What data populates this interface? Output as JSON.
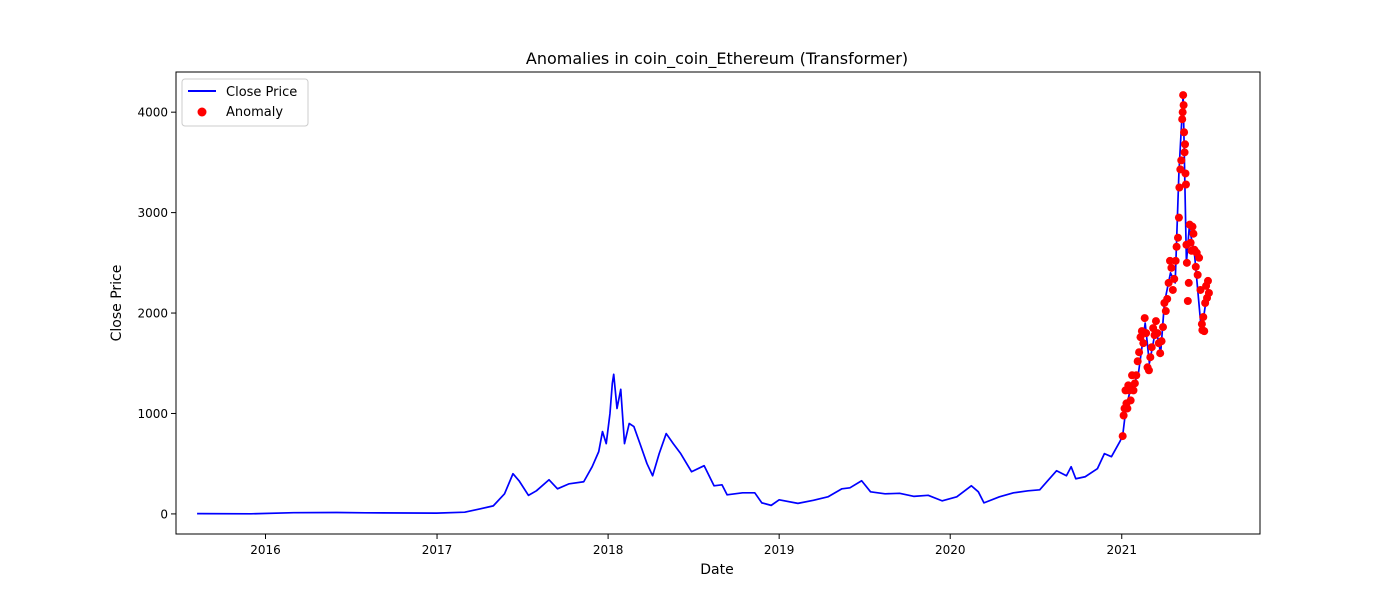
{
  "chart_data": {
    "type": "line",
    "title": "Anomalies in coin_coin_Ethereum (Transformer)",
    "xlabel": "Date",
    "ylabel": "Close Price",
    "x_range": [
      "2015-06-24",
      "2021-10-23"
    ],
    "ylim": [
      -200,
      4400
    ],
    "x_ticks": [
      {
        "date": "2016-01-01",
        "label": "2016"
      },
      {
        "date": "2017-01-01",
        "label": "2017"
      },
      {
        "date": "2018-01-01",
        "label": "2018"
      },
      {
        "date": "2019-01-01",
        "label": "2019"
      },
      {
        "date": "2020-01-01",
        "label": "2020"
      },
      {
        "date": "2021-01-01",
        "label": "2021"
      }
    ],
    "y_ticks": [
      {
        "value": 0,
        "label": "0"
      },
      {
        "value": 1000,
        "label": "1000"
      },
      {
        "value": 2000,
        "label": "2000"
      },
      {
        "value": 3000,
        "label": "3000"
      },
      {
        "value": 4000,
        "label": "4000"
      }
    ],
    "grid": false,
    "legend": {
      "position": "top-left",
      "entries": [
        {
          "label": "Close Price",
          "marker": "line",
          "color": "#0000ff"
        },
        {
          "label": "Anomaly",
          "marker": "dot",
          "color": "#ff0000"
        }
      ]
    },
    "series": [
      {
        "name": "Close Price",
        "kind": "line",
        "color": "#0000ff",
        "points": [
          [
            "2015-08-08",
            3
          ],
          [
            "2015-12-01",
            1
          ],
          [
            "2016-03-01",
            12
          ],
          [
            "2016-06-01",
            14
          ],
          [
            "2016-08-01",
            11
          ],
          [
            "2016-12-31",
            8
          ],
          [
            "2017-03-01",
            17
          ],
          [
            "2017-04-01",
            48
          ],
          [
            "2017-05-01",
            80
          ],
          [
            "2017-05-25",
            200
          ],
          [
            "2017-06-12",
            400
          ],
          [
            "2017-06-25",
            330
          ],
          [
            "2017-07-15",
            185
          ],
          [
            "2017-08-01",
            230
          ],
          [
            "2017-08-28",
            340
          ],
          [
            "2017-09-15",
            250
          ],
          [
            "2017-10-10",
            300
          ],
          [
            "2017-11-10",
            320
          ],
          [
            "2017-11-28",
            470
          ],
          [
            "2017-12-12",
            620
          ],
          [
            "2017-12-20",
            820
          ],
          [
            "2017-12-28",
            700
          ],
          [
            "2018-01-05",
            1000
          ],
          [
            "2018-01-10",
            1300
          ],
          [
            "2018-01-13",
            1390
          ],
          [
            "2018-01-20",
            1050
          ],
          [
            "2018-01-28",
            1240
          ],
          [
            "2018-02-05",
            700
          ],
          [
            "2018-02-15",
            900
          ],
          [
            "2018-02-25",
            870
          ],
          [
            "2018-03-10",
            700
          ],
          [
            "2018-03-25",
            500
          ],
          [
            "2018-04-06",
            380
          ],
          [
            "2018-04-20",
            600
          ],
          [
            "2018-05-05",
            800
          ],
          [
            "2018-05-20",
            700
          ],
          [
            "2018-06-05",
            600
          ],
          [
            "2018-06-28",
            420
          ],
          [
            "2018-07-25",
            480
          ],
          [
            "2018-08-15",
            280
          ],
          [
            "2018-09-01",
            290
          ],
          [
            "2018-09-12",
            190
          ],
          [
            "2018-10-15",
            210
          ],
          [
            "2018-11-10",
            210
          ],
          [
            "2018-11-25",
            110
          ],
          [
            "2018-12-15",
            85
          ],
          [
            "2019-01-01",
            140
          ],
          [
            "2019-02-10",
            105
          ],
          [
            "2019-03-15",
            135
          ],
          [
            "2019-04-15",
            170
          ],
          [
            "2019-05-15",
            250
          ],
          [
            "2019-06-01",
            260
          ],
          [
            "2019-06-26",
            330
          ],
          [
            "2019-07-15",
            220
          ],
          [
            "2019-08-15",
            200
          ],
          [
            "2019-09-15",
            205
          ],
          [
            "2019-10-15",
            175
          ],
          [
            "2019-11-15",
            185
          ],
          [
            "2019-12-15",
            130
          ],
          [
            "2020-01-15",
            170
          ],
          [
            "2020-02-15",
            280
          ],
          [
            "2020-03-01",
            220
          ],
          [
            "2020-03-13",
            110
          ],
          [
            "2020-04-15",
            170
          ],
          [
            "2020-05-15",
            210
          ],
          [
            "2020-06-15",
            230
          ],
          [
            "2020-07-10",
            240
          ],
          [
            "2020-07-25",
            320
          ],
          [
            "2020-08-15",
            430
          ],
          [
            "2020-09-05",
            380
          ],
          [
            "2020-09-15",
            470
          ],
          [
            "2020-09-25",
            350
          ],
          [
            "2020-10-15",
            370
          ],
          [
            "2020-11-10",
            450
          ],
          [
            "2020-11-25",
            600
          ],
          [
            "2020-12-10",
            570
          ],
          [
            "2020-12-28",
            720
          ],
          [
            "2021-01-03",
            780
          ],
          [
            "2021-01-10",
            1050
          ],
          [
            "2021-01-20",
            1250
          ],
          [
            "2021-02-05",
            1380
          ],
          [
            "2021-02-20",
            1900
          ],
          [
            "2021-03-01",
            1500
          ],
          [
            "2021-03-15",
            1850
          ],
          [
            "2021-03-25",
            1600
          ],
          [
            "2021-04-02",
            2100
          ],
          [
            "2021-04-15",
            2400
          ],
          [
            "2021-04-25",
            2300
          ],
          [
            "2021-05-03",
            3400
          ],
          [
            "2021-05-12",
            4170
          ],
          [
            "2021-05-19",
            2500
          ],
          [
            "2021-05-25",
            2850
          ],
          [
            "2021-06-05",
            2600
          ],
          [
            "2021-06-20",
            1820
          ],
          [
            "2021-06-26",
            2000
          ],
          [
            "2021-07-06",
            2320
          ]
        ]
      },
      {
        "name": "Anomaly",
        "kind": "scatter",
        "color": "#ff0000",
        "points": [
          [
            "2021-01-03",
            775
          ],
          [
            "2021-01-05",
            980
          ],
          [
            "2021-01-07",
            1050
          ],
          [
            "2021-01-09",
            1230
          ],
          [
            "2021-01-11",
            1100
          ],
          [
            "2021-01-13",
            1050
          ],
          [
            "2021-01-15",
            1280
          ],
          [
            "2021-01-17",
            1230
          ],
          [
            "2021-01-20",
            1130
          ],
          [
            "2021-01-23",
            1380
          ],
          [
            "2021-01-26",
            1230
          ],
          [
            "2021-01-29",
            1300
          ],
          [
            "2021-02-01",
            1380
          ],
          [
            "2021-02-04",
            1520
          ],
          [
            "2021-02-07",
            1610
          ],
          [
            "2021-02-10",
            1760
          ],
          [
            "2021-02-13",
            1820
          ],
          [
            "2021-02-16",
            1700
          ],
          [
            "2021-02-19",
            1950
          ],
          [
            "2021-02-22",
            1800
          ],
          [
            "2021-02-25",
            1460
          ],
          [
            "2021-02-28",
            1430
          ],
          [
            "2021-03-03",
            1560
          ],
          [
            "2021-03-06",
            1660
          ],
          [
            "2021-03-09",
            1850
          ],
          [
            "2021-03-12",
            1780
          ],
          [
            "2021-03-15",
            1920
          ],
          [
            "2021-03-18",
            1800
          ],
          [
            "2021-03-21",
            1700
          ],
          [
            "2021-03-24",
            1600
          ],
          [
            "2021-03-27",
            1720
          ],
          [
            "2021-03-30",
            1860
          ],
          [
            "2021-04-02",
            2100
          ],
          [
            "2021-04-05",
            2020
          ],
          [
            "2021-04-08",
            2140
          ],
          [
            "2021-04-11",
            2300
          ],
          [
            "2021-04-14",
            2520
          ],
          [
            "2021-04-17",
            2450
          ],
          [
            "2021-04-20",
            2230
          ],
          [
            "2021-04-23",
            2340
          ],
          [
            "2021-04-26",
            2520
          ],
          [
            "2021-04-28",
            2660
          ],
          [
            "2021-05-01",
            2750
          ],
          [
            "2021-05-03",
            2950
          ],
          [
            "2021-05-04",
            3250
          ],
          [
            "2021-05-06",
            3430
          ],
          [
            "2021-05-08",
            3520
          ],
          [
            "2021-05-10",
            3930
          ],
          [
            "2021-05-11",
            4000
          ],
          [
            "2021-05-12",
            4170
          ],
          [
            "2021-05-13",
            4070
          ],
          [
            "2021-05-14",
            3800
          ],
          [
            "2021-05-15",
            3600
          ],
          [
            "2021-05-16",
            3680
          ],
          [
            "2021-05-17",
            3390
          ],
          [
            "2021-05-18",
            3280
          ],
          [
            "2021-05-19",
            2680
          ],
          [
            "2021-05-20",
            2500
          ],
          [
            "2021-05-22",
            2120
          ],
          [
            "2021-05-24",
            2300
          ],
          [
            "2021-05-26",
            2880
          ],
          [
            "2021-05-28",
            2700
          ],
          [
            "2021-05-30",
            2620
          ],
          [
            "2021-06-01",
            2860
          ],
          [
            "2021-06-03",
            2790
          ],
          [
            "2021-06-05",
            2630
          ],
          [
            "2021-06-08",
            2460
          ],
          [
            "2021-06-10",
            2600
          ],
          [
            "2021-06-12",
            2380
          ],
          [
            "2021-06-15",
            2550
          ],
          [
            "2021-06-18",
            2230
          ],
          [
            "2021-06-21",
            1890
          ],
          [
            "2021-06-22",
            1830
          ],
          [
            "2021-06-24",
            1960
          ],
          [
            "2021-06-26",
            1820
          ],
          [
            "2021-06-28",
            2100
          ],
          [
            "2021-06-30",
            2270
          ],
          [
            "2021-07-02",
            2150
          ],
          [
            "2021-07-04",
            2320
          ],
          [
            "2021-07-06",
            2200
          ]
        ]
      }
    ]
  }
}
